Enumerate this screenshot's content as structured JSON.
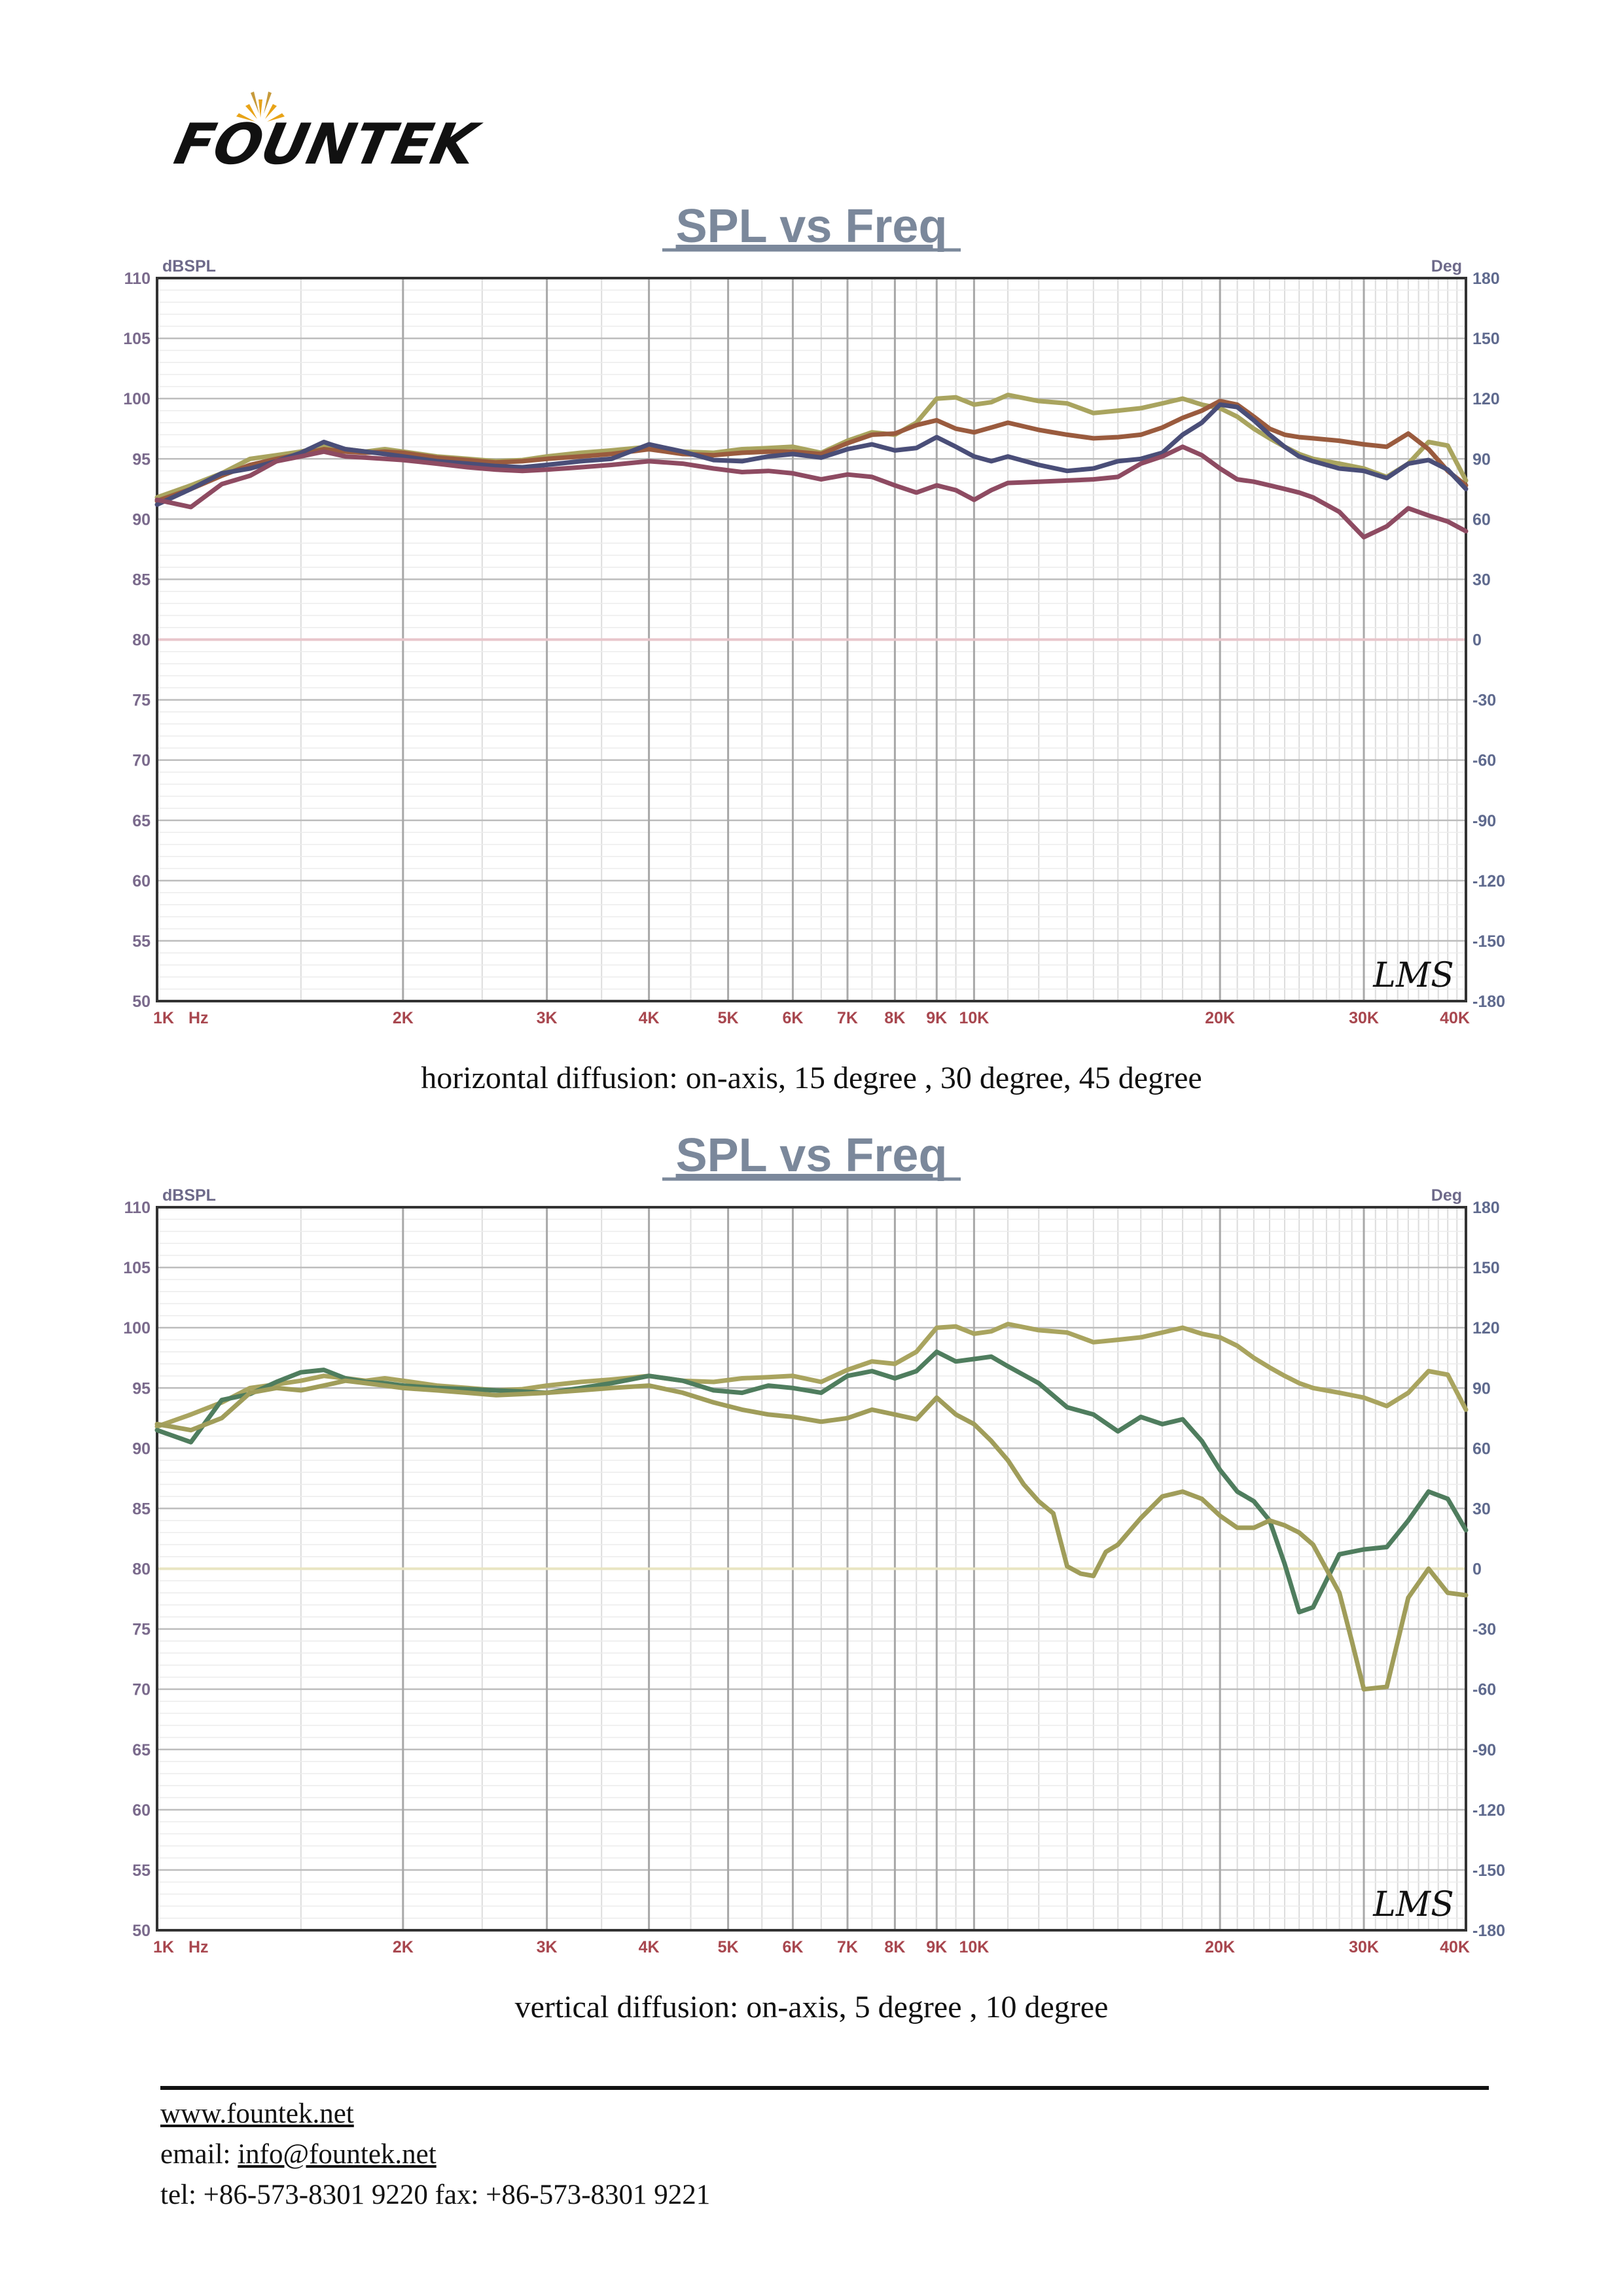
{
  "brand": {
    "name": "FOUNTEK"
  },
  "footer": {
    "website": "www.fountek.net",
    "email_label": "email:",
    "email": "info@fountek.net",
    "phone_line": "tel: +86-573-8301 9220 fax: +86-573-8301 9221"
  },
  "chart_data": [
    {
      "type": "line",
      "title": "SPL vs Freq",
      "caption": "horizontal diffusion: on-axis, 15 degree , 30 degree, 45 degree",
      "ylabel": "dBSPL",
      "y2label": "Deg",
      "xlabel": "Hz",
      "x_scale": "log",
      "xlim": [
        1000,
        40000
      ],
      "ylim": [
        50,
        110
      ],
      "y2lim": [
        -180,
        180
      ],
      "x_ticks": [
        {
          "v": 1000,
          "label": "1K"
        },
        {
          "v": 2000,
          "label": "2K"
        },
        {
          "v": 3000,
          "label": "3K"
        },
        {
          "v": 4000,
          "label": "4K"
        },
        {
          "v": 5000,
          "label": "5K"
        },
        {
          "v": 6000,
          "label": "6K"
        },
        {
          "v": 7000,
          "label": "7K"
        },
        {
          "v": 8000,
          "label": "8K"
        },
        {
          "v": 9000,
          "label": "9K"
        },
        {
          "v": 10000,
          "label": "10K"
        },
        {
          "v": 20000,
          "label": "20K"
        },
        {
          "v": 30000,
          "label": "30K"
        },
        {
          "v": 40000,
          "label": "40K"
        }
      ],
      "y_ticks": [
        110,
        105,
        100,
        95,
        90,
        85,
        80,
        75,
        70,
        65,
        60,
        55,
        50
      ],
      "y2_ticks": [
        180,
        150,
        120,
        90,
        60,
        30,
        0,
        -30,
        -60,
        -90,
        -120,
        -150,
        -180
      ],
      "watermark": "LMS",
      "grid": true,
      "zero_line_color": "#e8c6cb",
      "series": [
        {
          "color": "#a9a45f",
          "x": [
            1000,
            1100,
            1200,
            1300,
            1400,
            1500,
            1600,
            1700,
            1800,
            1900,
            2000,
            2200,
            2400,
            2600,
            2800,
            3000,
            3300,
            3600,
            4000,
            4400,
            4800,
            5200,
            5600,
            6000,
            6500,
            7000,
            7500,
            8000,
            8500,
            9000,
            9500,
            10000,
            10500,
            11000,
            12000,
            13000,
            14000,
            15000,
            16000,
            17000,
            18000,
            19000,
            20000,
            21000,
            22000,
            23000,
            24000,
            25000,
            26000,
            28000,
            30000,
            32000,
            34000,
            36000,
            38000,
            40000
          ],
          "y": [
            91.8,
            92.8,
            93.8,
            95,
            95.3,
            95.6,
            96,
            95.8,
            95.6,
            95.8,
            95.6,
            95.2,
            95,
            94.8,
            94.9,
            95.2,
            95.5,
            95.7,
            96,
            95.6,
            95.5,
            95.8,
            95.9,
            96,
            95.5,
            96.5,
            97.2,
            97,
            98,
            100,
            100.1,
            99.5,
            99.7,
            100.3,
            99.8,
            99.6,
            98.8,
            99,
            99.2,
            99.6,
            100,
            99.5,
            99.2,
            98.5,
            97.5,
            96.7,
            96,
            95.4,
            95,
            94.6,
            94.2,
            93.5,
            94.6,
            96.4,
            96.1,
            93.2
          ]
        },
        {
          "color": "#9a5b3e",
          "x": [
            1000,
            1100,
            1200,
            1300,
            1400,
            1500,
            1600,
            1700,
            1800,
            1900,
            2000,
            2200,
            2400,
            2600,
            2800,
            3000,
            3300,
            3600,
            4000,
            4400,
            4800,
            5200,
            5600,
            6000,
            6500,
            7000,
            7500,
            8000,
            8500,
            9000,
            9500,
            10000,
            10500,
            11000,
            12000,
            13000,
            14000,
            15000,
            16000,
            17000,
            18000,
            19000,
            20000,
            21000,
            22000,
            23000,
            24000,
            25000,
            26000,
            28000,
            30000,
            32000,
            34000,
            36000,
            38000,
            40000
          ],
          "y": [
            91.5,
            92.5,
            93.6,
            94.5,
            95,
            95.4,
            95.8,
            95.6,
            95.5,
            95.6,
            95.5,
            95.1,
            94.9,
            94.7,
            94.8,
            95,
            95.2,
            95.4,
            95.8,
            95.4,
            95.3,
            95.5,
            95.6,
            95.6,
            95.4,
            96.3,
            97,
            97.1,
            97.8,
            98.2,
            97.5,
            97.2,
            97.6,
            98,
            97.4,
            97,
            96.7,
            96.8,
            97,
            97.6,
            98.4,
            99,
            99.8,
            99.5,
            98.5,
            97.5,
            97,
            96.8,
            96.7,
            96.5,
            96.2,
            96,
            97.1,
            95.8,
            94,
            92.8
          ]
        },
        {
          "color": "#4a4e78",
          "x": [
            1000,
            1100,
            1200,
            1300,
            1400,
            1500,
            1600,
            1700,
            1800,
            1900,
            2000,
            2200,
            2400,
            2600,
            2800,
            3000,
            3300,
            3600,
            4000,
            4400,
            4800,
            5200,
            5600,
            6000,
            6500,
            7000,
            7500,
            8000,
            8500,
            9000,
            9500,
            10000,
            10500,
            11000,
            12000,
            13000,
            14000,
            15000,
            16000,
            17000,
            18000,
            19000,
            20000,
            21000,
            22000,
            23000,
            24000,
            25000,
            26000,
            28000,
            30000,
            32000,
            34000,
            36000,
            38000,
            40000
          ],
          "y": [
            91.2,
            92.5,
            93.8,
            94.2,
            94.8,
            95.5,
            96.4,
            95.8,
            95.6,
            95.4,
            95.2,
            94.8,
            94.6,
            94.4,
            94.3,
            94.5,
            94.8,
            95,
            96.2,
            95.6,
            94.9,
            94.8,
            95.2,
            95.4,
            95.1,
            95.8,
            96.2,
            95.7,
            95.9,
            96.8,
            96,
            95.2,
            94.8,
            95.2,
            94.5,
            94,
            94.2,
            94.8,
            95,
            95.5,
            97,
            98,
            99.5,
            99.3,
            98.2,
            97,
            96,
            95.2,
            94.8,
            94.2,
            94,
            93.4,
            94.6,
            94.9,
            94.1,
            92.5
          ]
        },
        {
          "color": "#8e4b62",
          "x": [
            1000,
            1100,
            1200,
            1300,
            1400,
            1500,
            1600,
            1700,
            1800,
            1900,
            2000,
            2200,
            2400,
            2600,
            2800,
            3000,
            3300,
            3600,
            4000,
            4400,
            4800,
            5200,
            5600,
            6000,
            6500,
            7000,
            7500,
            8000,
            8500,
            9000,
            9500,
            10000,
            10500,
            11000,
            12000,
            13000,
            14000,
            15000,
            16000,
            17000,
            18000,
            19000,
            20000,
            21000,
            22000,
            23000,
            24000,
            25000,
            26000,
            28000,
            30000,
            32000,
            34000,
            36000,
            38000,
            40000
          ],
          "y": [
            91.6,
            91,
            92.9,
            93.6,
            94.8,
            95.2,
            95.6,
            95.2,
            95.1,
            95,
            94.9,
            94.6,
            94.3,
            94.1,
            94,
            94.1,
            94.3,
            94.5,
            94.8,
            94.6,
            94.2,
            93.9,
            94,
            93.8,
            93.3,
            93.7,
            93.5,
            92.8,
            92.2,
            92.8,
            92.4,
            91.6,
            92.4,
            93,
            93.1,
            93.2,
            93.3,
            93.5,
            94.6,
            95.2,
            96,
            95.3,
            94.2,
            93.3,
            93.1,
            92.8,
            92.5,
            92.2,
            91.8,
            90.6,
            88.5,
            89.4,
            90.9,
            90.3,
            89.8,
            89
          ]
        }
      ]
    },
    {
      "type": "line",
      "title": "SPL vs Freq",
      "caption": "vertical diffusion: on-axis, 5 degree , 10 degree",
      "ylabel": "dBSPL",
      "y2label": "Deg",
      "xlabel": "Hz",
      "x_scale": "log",
      "xlim": [
        1000,
        40000
      ],
      "ylim": [
        50,
        110
      ],
      "y2lim": [
        -180,
        180
      ],
      "x_ticks": [
        {
          "v": 1000,
          "label": "1K"
        },
        {
          "v": 2000,
          "label": "2K"
        },
        {
          "v": 3000,
          "label": "3K"
        },
        {
          "v": 4000,
          "label": "4K"
        },
        {
          "v": 5000,
          "label": "5K"
        },
        {
          "v": 6000,
          "label": "6K"
        },
        {
          "v": 7000,
          "label": "7K"
        },
        {
          "v": 8000,
          "label": "8K"
        },
        {
          "v": 9000,
          "label": "9K"
        },
        {
          "v": 10000,
          "label": "10K"
        },
        {
          "v": 20000,
          "label": "20K"
        },
        {
          "v": 30000,
          "label": "30K"
        },
        {
          "v": 40000,
          "label": "40K"
        }
      ],
      "y_ticks": [
        110,
        105,
        100,
        95,
        90,
        85,
        80,
        75,
        70,
        65,
        60,
        55,
        50
      ],
      "y2_ticks": [
        180,
        150,
        120,
        90,
        60,
        30,
        0,
        -30,
        -60,
        -90,
        -120,
        -150,
        -180
      ],
      "watermark": "LMS",
      "grid": true,
      "zero_line_color": "#e9e5c1",
      "series": [
        {
          "color": "#a9a45f",
          "x": [
            1000,
            1100,
            1200,
            1300,
            1400,
            1500,
            1600,
            1700,
            1800,
            1900,
            2000,
            2200,
            2400,
            2600,
            2800,
            3000,
            3300,
            3600,
            4000,
            4400,
            4800,
            5200,
            5600,
            6000,
            6500,
            7000,
            7500,
            8000,
            8500,
            9000,
            9500,
            10000,
            10500,
            11000,
            12000,
            13000,
            14000,
            15000,
            16000,
            17000,
            18000,
            19000,
            20000,
            21000,
            22000,
            23000,
            24000,
            25000,
            26000,
            28000,
            30000,
            32000,
            34000,
            36000,
            38000,
            40000
          ],
          "y": [
            91.8,
            92.8,
            93.8,
            95,
            95.3,
            95.6,
            96,
            95.8,
            95.6,
            95.8,
            95.6,
            95.2,
            95,
            94.8,
            94.9,
            95.2,
            95.5,
            95.7,
            96,
            95.6,
            95.5,
            95.8,
            95.9,
            96,
            95.5,
            96.5,
            97.2,
            97,
            98,
            100,
            100.1,
            99.5,
            99.7,
            100.3,
            99.8,
            99.6,
            98.8,
            99,
            99.2,
            99.6,
            100,
            99.5,
            99.2,
            98.5,
            97.5,
            96.7,
            96,
            95.4,
            95,
            94.6,
            94.2,
            93.5,
            94.6,
            96.4,
            96.1,
            93.2
          ]
        },
        {
          "color": "#4f7d5e",
          "x": [
            1000,
            1100,
            1200,
            1300,
            1400,
            1500,
            1600,
            1700,
            1800,
            1900,
            2000,
            2200,
            2400,
            2600,
            2800,
            3000,
            3300,
            3600,
            4000,
            4400,
            4800,
            5200,
            5600,
            6000,
            6500,
            7000,
            7500,
            8000,
            8500,
            9000,
            9500,
            10000,
            10500,
            11000,
            12000,
            13000,
            14000,
            15000,
            16000,
            17000,
            18000,
            19000,
            20000,
            21000,
            22000,
            23000,
            24000,
            25000,
            26000,
            28000,
            30000,
            32000,
            34000,
            36000,
            38000,
            40000
          ],
          "y": [
            91.5,
            90.5,
            94,
            94.5,
            95.5,
            96.3,
            96.5,
            95.8,
            95.5,
            95.4,
            95.2,
            95,
            94.9,
            94.8,
            94.7,
            94.6,
            95,
            95.4,
            96,
            95.6,
            94.8,
            94.6,
            95.2,
            95,
            94.6,
            96,
            96.4,
            95.8,
            96.4,
            98,
            97.2,
            97.4,
            97.6,
            96.8,
            95.4,
            93.4,
            92.8,
            91.4,
            92.6,
            92,
            92.4,
            90.6,
            88.2,
            86.4,
            85.6,
            84,
            80.4,
            76.4,
            76.8,
            81.2,
            81.6,
            81.8,
            84,
            86.4,
            85.8,
            83.2
          ]
        },
        {
          "color": "#a09d5a",
          "x": [
            1000,
            1100,
            1200,
            1300,
            1400,
            1500,
            1600,
            1700,
            1800,
            1900,
            2000,
            2200,
            2400,
            2600,
            2800,
            3000,
            3300,
            3600,
            4000,
            4400,
            4800,
            5200,
            5600,
            6000,
            6500,
            7000,
            7500,
            8000,
            8500,
            9000,
            9500,
            10000,
            10500,
            11000,
            11500,
            12000,
            12500,
            13000,
            13500,
            14000,
            14500,
            15000,
            16000,
            17000,
            18000,
            19000,
            20000,
            21000,
            22000,
            23000,
            24000,
            25000,
            26000,
            28000,
            29000,
            30000,
            32000,
            34000,
            36000,
            38000,
            40000
          ],
          "y": [
            92,
            91.5,
            92.5,
            94.6,
            95,
            94.8,
            95.2,
            95.6,
            95.4,
            95.2,
            95,
            94.8,
            94.6,
            94.4,
            94.5,
            94.6,
            94.8,
            95,
            95.2,
            94.6,
            93.8,
            93.2,
            92.8,
            92.6,
            92.2,
            92.5,
            93.2,
            92.8,
            92.4,
            94.2,
            92.8,
            92,
            90.6,
            89,
            87,
            85.6,
            84.6,
            80.2,
            79.6,
            79.4,
            81.4,
            82,
            84.2,
            86,
            86.4,
            85.8,
            84.4,
            83.4,
            83.4,
            84,
            83.6,
            83,
            82,
            78,
            74,
            70,
            70.2,
            77.6,
            80,
            78,
            77.8
          ]
        }
      ]
    }
  ]
}
